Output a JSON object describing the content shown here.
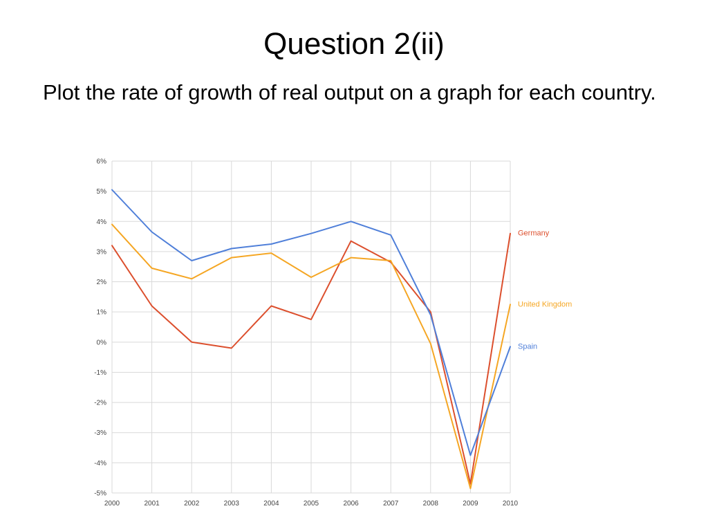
{
  "slide": {
    "title": "Question 2(ii)",
    "body": "Plot the rate of growth of real output on a graph for each country."
  },
  "chart_data": {
    "type": "line",
    "title": "",
    "xlabel": "",
    "ylabel": "",
    "x": [
      2000,
      2001,
      2002,
      2003,
      2004,
      2005,
      2006,
      2007,
      2008,
      2009,
      2010
    ],
    "x_tick_labels": [
      "2000",
      "2001",
      "2002",
      "2003",
      "2004",
      "2005",
      "2006",
      "2007",
      "2008",
      "2009",
      "2010"
    ],
    "ylim": [
      -5,
      6
    ],
    "y_ticks": [
      6,
      5,
      4,
      3,
      2,
      1,
      0,
      -1,
      -2,
      -3,
      -4,
      -5
    ],
    "y_tick_labels": [
      "6%",
      "5%",
      "4%",
      "3%",
      "2%",
      "1%",
      "0%",
      "-1%",
      "-2%",
      "-3%",
      "-4%",
      "-5%"
    ],
    "grid": true,
    "legend_placement": "right, labels at series end",
    "series": [
      {
        "name": "Germany",
        "color": "#dc4f2d",
        "values": [
          3.2,
          1.2,
          0.0,
          -0.2,
          1.2,
          0.75,
          3.35,
          2.65,
          1.0,
          -4.7,
          3.6
        ]
      },
      {
        "name": "United Kingdom",
        "color": "#f5a623",
        "values": [
          3.9,
          2.45,
          2.1,
          2.8,
          2.95,
          2.15,
          2.8,
          2.7,
          -0.05,
          -4.85,
          1.25
        ]
      },
      {
        "name": "Spain",
        "color": "#4f7fd9",
        "values": [
          5.05,
          3.65,
          2.7,
          3.1,
          3.25,
          3.6,
          4.0,
          3.55,
          0.9,
          -3.75,
          -0.15
        ]
      }
    ]
  }
}
